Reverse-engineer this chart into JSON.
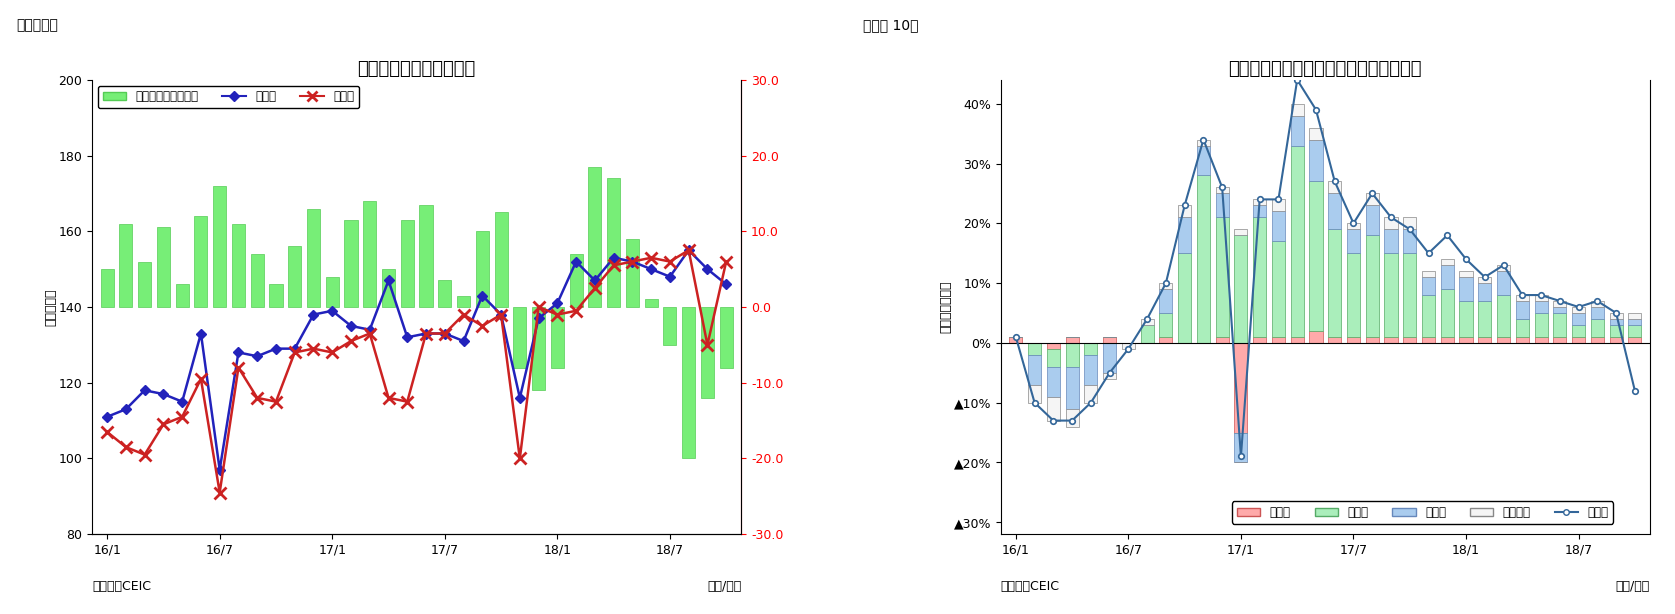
{
  "chart1": {
    "title": "インドネシアの貳易収支",
    "label": "（図表９）",
    "ylabel_left": "（億ドル）",
    "ylabel_right": "（億ドル）",
    "source": "（資料）CEIC",
    "xlabel": "（年/月）",
    "ylim_left": [
      80,
      200
    ],
    "ylim_right": [
      -30.0,
      30.0
    ],
    "yticks_left": [
      80,
      100,
      120,
      140,
      160,
      180,
      200
    ],
    "yticks_right": [
      -30.0,
      -20.0,
      -10.0,
      0.0,
      10.0,
      20.0,
      30.0
    ],
    "xtick_labels": [
      "16/1",
      "16/7",
      "17/1",
      "17/7",
      "18/1",
      "18/7"
    ],
    "bar_color": "#77ee77",
    "bar_edge_color": "#55cc55",
    "export_color": "#2222bb",
    "import_color": "#cc2222",
    "legend_trade": "貳易収支（右目盛）",
    "legend_export": "輸出額",
    "legend_import": "輸入額",
    "trade_balance": [
      5.0,
      11.0,
      6.0,
      10.5,
      3.0,
      12.0,
      16.0,
      11.0,
      7.0,
      3.0,
      8.0,
      13.0,
      4.0,
      11.5,
      14.0,
      5.0,
      11.5,
      13.5,
      3.5,
      1.5,
      10.0,
      12.5,
      -8.0,
      -11.0,
      -8.0,
      7.0,
      18.5,
      17.0,
      9.0,
      1.0,
      -5.0,
      -20.0,
      -12.0,
      -8.0
    ],
    "export": [
      111,
      113,
      118,
      117,
      115,
      133,
      97,
      128,
      127,
      129,
      129,
      138,
      139,
      135,
      134,
      147,
      132,
      133,
      133,
      131,
      143,
      138,
      116,
      137,
      141,
      152,
      147,
      153,
      152,
      150,
      148,
      155,
      150,
      146
    ],
    "import": [
      107,
      103,
      101,
      109,
      111,
      121,
      91,
      124,
      116,
      115,
      128,
      129,
      128,
      131,
      133,
      116,
      115,
      133,
      133,
      138,
      135,
      138,
      100,
      140,
      138,
      139,
      145,
      151,
      152,
      153,
      152,
      155,
      130,
      152
    ]
  },
  "chart2": {
    "title": "インドネシア　輸出の伸び率（品目別）",
    "label": "（図表 10）",
    "ylabel": "（前年同月比）",
    "source": "（資料）CEIC",
    "xlabel": "（年/月）",
    "ylim": [
      -0.32,
      0.44
    ],
    "ytick_vals": [
      0.4,
      0.3,
      0.2,
      0.1,
      0.0,
      -0.1,
      -0.2,
      -0.3
    ],
    "ytick_labels": [
      "40%",
      "30%",
      "20%",
      "10%",
      "0%",
      "▲10%",
      "▲20%",
      "▲30%"
    ],
    "xtick_labels": [
      "16/1",
      "16/7",
      "17/1",
      "17/7",
      "18/1",
      "18/7"
    ],
    "color_agri": "#ffaaaa",
    "color_agri_edge": "#cc5555",
    "color_manuf": "#aaeebb",
    "color_manuf_edge": "#55aa66",
    "color_mining": "#aaccee",
    "color_mining_edge": "#6688bb",
    "color_oil": "#f5f5f5",
    "color_oil_edge": "#888888",
    "color_export": "#336699",
    "legend_agri": "農産品",
    "legend_manuf": "製造品",
    "legend_mining": "鉱業品",
    "legend_oil": "石油ガス",
    "legend_export": "輸出額",
    "agri": [
      0.01,
      0.0,
      -0.01,
      0.01,
      0.0,
      0.01,
      0.0,
      0.0,
      0.01,
      0.0,
      0.0,
      0.01,
      -0.15,
      0.01,
      0.01,
      0.01,
      0.02,
      0.01,
      0.01,
      0.01,
      0.01,
      0.01,
      0.01,
      0.01,
      0.01,
      0.01,
      0.01,
      0.01,
      0.01,
      0.01,
      0.01,
      0.01,
      0.01,
      0.01
    ],
    "manuf": [
      0.0,
      -0.02,
      -0.03,
      -0.04,
      -0.02,
      0.0,
      0.0,
      0.03,
      0.04,
      0.15,
      0.28,
      0.2,
      0.18,
      0.2,
      0.16,
      0.32,
      0.25,
      0.18,
      0.14,
      0.17,
      0.14,
      0.14,
      0.07,
      0.08,
      0.06,
      0.06,
      0.07,
      0.03,
      0.04,
      0.04,
      0.02,
      0.03,
      0.02,
      0.02
    ],
    "mining": [
      0.0,
      -0.05,
      -0.05,
      -0.07,
      -0.05,
      -0.05,
      0.0,
      0.0,
      0.04,
      0.06,
      0.05,
      0.04,
      -0.05,
      0.02,
      0.05,
      0.05,
      0.07,
      0.06,
      0.04,
      0.05,
      0.04,
      0.04,
      0.03,
      0.04,
      0.04,
      0.03,
      0.04,
      0.03,
      0.02,
      0.01,
      0.02,
      0.02,
      0.01,
      0.01
    ],
    "oil": [
      0.0,
      -0.03,
      -0.04,
      -0.03,
      -0.03,
      -0.01,
      -0.01,
      0.01,
      0.01,
      0.02,
      0.01,
      0.01,
      0.01,
      0.01,
      0.02,
      0.02,
      0.02,
      0.02,
      0.01,
      0.02,
      0.02,
      0.02,
      0.01,
      0.01,
      0.01,
      0.01,
      0.01,
      0.01,
      0.01,
      0.01,
      0.01,
      0.01,
      0.01,
      0.01
    ],
    "export_line": [
      0.01,
      -0.1,
      -0.13,
      -0.13,
      -0.1,
      -0.05,
      -0.01,
      0.04,
      0.1,
      0.23,
      0.34,
      0.26,
      -0.19,
      0.24,
      0.24,
      0.44,
      0.39,
      0.27,
      0.2,
      0.25,
      0.21,
      0.19,
      0.15,
      0.18,
      0.14,
      0.11,
      0.13,
      0.08,
      0.08,
      0.07,
      0.06,
      0.07,
      0.05,
      -0.08
    ],
    "n_months": 34
  }
}
